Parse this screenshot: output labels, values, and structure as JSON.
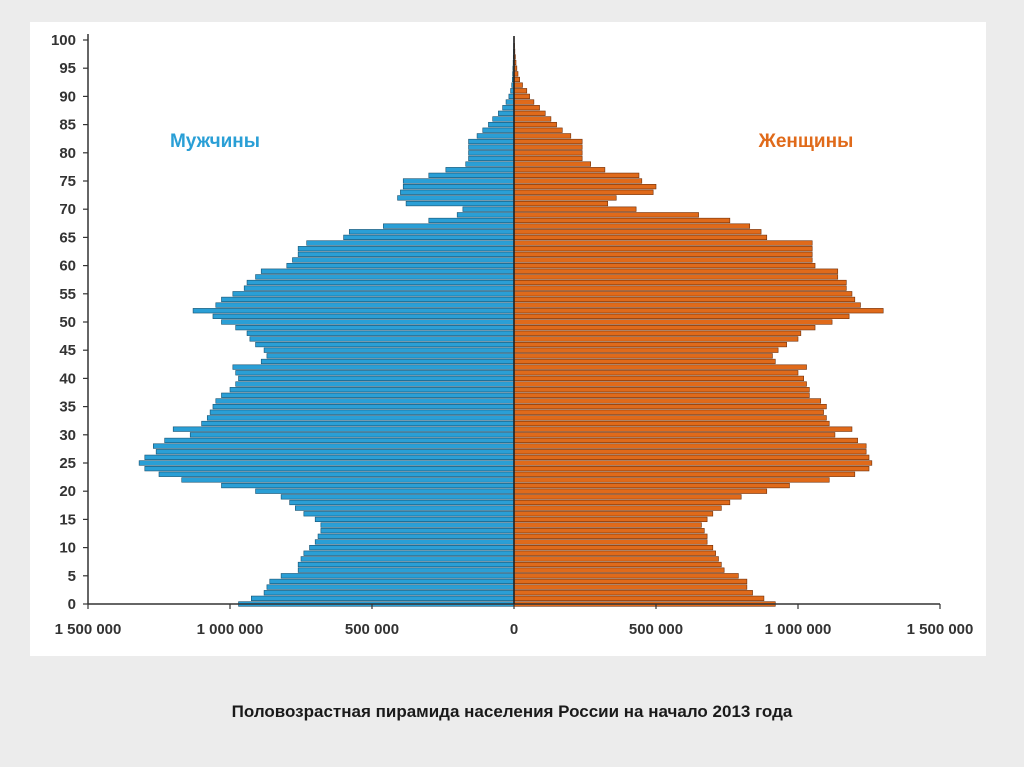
{
  "caption": "Половозрастная пирамида населения России на начало 2013 года",
  "chart_data": {
    "type": "bar",
    "orientation": "horizontal-pyramid",
    "x_tick_labels": [
      "1 500 000",
      "1 000 000",
      "500 000",
      "0",
      "500 000",
      "1 000 000",
      "1 500 000"
    ],
    "x_ticks": [
      -1500000,
      -1000000,
      -500000,
      0,
      500000,
      1000000,
      1500000
    ],
    "xlim": [
      -1500000,
      1500000
    ],
    "y_tick_labels": [
      "0",
      "5",
      "10",
      "15",
      "20",
      "25",
      "30",
      "35",
      "40",
      "45",
      "50",
      "55",
      "60",
      "65",
      "70",
      "75",
      "80",
      "85",
      "90",
      "95",
      "100"
    ],
    "y_ticks": [
      0,
      5,
      10,
      15,
      20,
      25,
      30,
      35,
      40,
      45,
      50,
      55,
      60,
      65,
      70,
      75,
      80,
      85,
      90,
      95,
      100
    ],
    "ylim": [
      0,
      100
    ],
    "grid": false,
    "ages": [
      0,
      1,
      2,
      3,
      4,
      5,
      6,
      7,
      8,
      9,
      10,
      11,
      12,
      13,
      14,
      15,
      16,
      17,
      18,
      19,
      20,
      21,
      22,
      23,
      24,
      25,
      26,
      27,
      28,
      29,
      30,
      31,
      32,
      33,
      34,
      35,
      36,
      37,
      38,
      39,
      40,
      41,
      42,
      43,
      44,
      45,
      46,
      47,
      48,
      49,
      50,
      51,
      52,
      53,
      54,
      55,
      56,
      57,
      58,
      59,
      60,
      61,
      62,
      63,
      64,
      65,
      66,
      67,
      68,
      69,
      70,
      71,
      72,
      73,
      74,
      75,
      76,
      77,
      78,
      79,
      80,
      81,
      82,
      83,
      84,
      85,
      86,
      87,
      88,
      89,
      90,
      91,
      92,
      93,
      94,
      95,
      96,
      97,
      98,
      99,
      100
    ],
    "series": [
      {
        "name": "Мужчины",
        "color": "#2a9fd6",
        "values": [
          970000,
          925000,
          880000,
          870000,
          860000,
          820000,
          760000,
          760000,
          750000,
          740000,
          720000,
          700000,
          690000,
          680000,
          680000,
          700000,
          740000,
          770000,
          790000,
          820000,
          910000,
          1030000,
          1170000,
          1250000,
          1300000,
          1320000,
          1300000,
          1260000,
          1270000,
          1230000,
          1140000,
          1200000,
          1100000,
          1080000,
          1070000,
          1060000,
          1050000,
          1030000,
          1000000,
          980000,
          970000,
          980000,
          990000,
          890000,
          870000,
          880000,
          910000,
          930000,
          940000,
          980000,
          1030000,
          1060000,
          1130000,
          1050000,
          1030000,
          990000,
          950000,
          940000,
          910000,
          890000,
          800000,
          780000,
          760000,
          760000,
          730000,
          600000,
          580000,
          460000,
          300000,
          200000,
          180000,
          380000,
          410000,
          400000,
          390000,
          390000,
          300000,
          240000,
          170000,
          160000,
          160000,
          160000,
          160000,
          130000,
          110000,
          90000,
          75000,
          55000,
          40000,
          28000,
          18000,
          12000,
          8000,
          6000,
          5000,
          4000,
          3000,
          2500,
          2000,
          1500,
          1000
        ],
        "label_text": "Мужчины"
      },
      {
        "name": "Женщины",
        "color": "#e06a1a",
        "values": [
          920000,
          880000,
          840000,
          820000,
          820000,
          790000,
          740000,
          730000,
          720000,
          710000,
          700000,
          680000,
          680000,
          670000,
          660000,
          680000,
          700000,
          730000,
          760000,
          800000,
          890000,
          970000,
          1110000,
          1200000,
          1250000,
          1260000,
          1250000,
          1240000,
          1240000,
          1210000,
          1130000,
          1190000,
          1110000,
          1100000,
          1090000,
          1100000,
          1080000,
          1040000,
          1040000,
          1030000,
          1020000,
          1000000,
          1030000,
          920000,
          910000,
          930000,
          960000,
          1000000,
          1010000,
          1060000,
          1120000,
          1180000,
          1300000,
          1220000,
          1200000,
          1190000,
          1170000,
          1170000,
          1140000,
          1140000,
          1060000,
          1050000,
          1050000,
          1050000,
          1050000,
          890000,
          870000,
          830000,
          760000,
          650000,
          430000,
          330000,
          360000,
          490000,
          500000,
          450000,
          440000,
          320000,
          270000,
          240000,
          240000,
          240000,
          240000,
          200000,
          170000,
          150000,
          130000,
          110000,
          90000,
          70000,
          55000,
          45000,
          30000,
          20000,
          14000,
          10000,
          7000,
          5000,
          3000,
          2000,
          1000
        ],
        "label_text": "Женщины"
      }
    ]
  }
}
